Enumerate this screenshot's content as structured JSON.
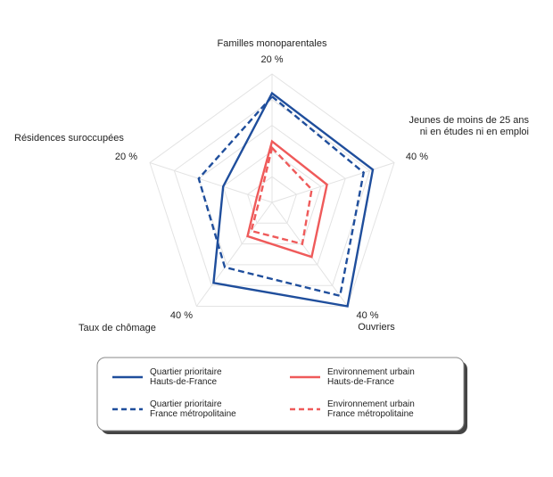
{
  "chart_data": {
    "type": "radar",
    "axes": [
      {
        "label_lines": [
          "Familles monoparentales"
        ],
        "max_label": "20 %",
        "max": 20
      },
      {
        "label_lines": [
          "Jeunes de moins de 25 ans",
          "ni en études ni en emploi"
        ],
        "max_label": "40 %",
        "max": 40
      },
      {
        "label_lines": [
          "Ouvriers"
        ],
        "max_label": "40 %",
        "max": 40
      },
      {
        "label_lines": [
          "Taux de chômage"
        ],
        "max_label": "40 %",
        "max": 40
      },
      {
        "label_lines": [
          "Résidences suroccupées"
        ],
        "max_label": "20 %",
        "max": 20
      }
    ],
    "grid_levels": 5,
    "series": [
      {
        "name_lines": [
          "Quartier prioritaire",
          "Hauts-de-France"
        ],
        "color": "#1f4e9c",
        "dash": "solid",
        "values": [
          17,
          33,
          40,
          31,
          8
        ]
      },
      {
        "name_lines": [
          "Quartier prioritaire",
          "France métropolitaine"
        ],
        "color": "#1f4e9c",
        "dash": "dashed",
        "values": [
          16.5,
          30,
          36,
          25,
          12
        ]
      },
      {
        "name_lines": [
          "Environnement urbain",
          "Hauts-de-France"
        ],
        "color": "#ef5a5a",
        "dash": "solid",
        "values": [
          9.5,
          18,
          21,
          13,
          2.5
        ]
      },
      {
        "name_lines": [
          "Environnement urbain",
          "France métropolitaine"
        ],
        "color": "#ef5a5a",
        "dash": "dashed",
        "values": [
          8.5,
          13,
          16,
          11,
          2
        ]
      }
    ]
  }
}
